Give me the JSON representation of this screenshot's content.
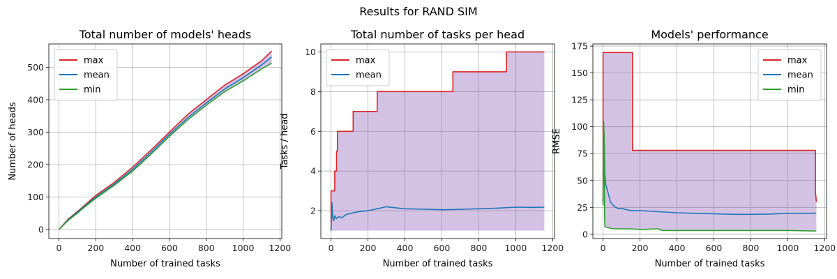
{
  "suptitle": "Results for RAND SIM",
  "colors": {
    "max": "#d62728",
    "mean": "#1f77b4",
    "min": "#2ca02c",
    "band": "#9467bd"
  },
  "chart_data": [
    {
      "type": "line",
      "title": "Total number of models' heads",
      "xlabel": "Number of trained tasks",
      "ylabel": "Number of heads",
      "xlim": [
        -55,
        1210
      ],
      "ylim": [
        -28,
        572
      ],
      "xticks": [
        0,
        200,
        400,
        600,
        800,
        1000,
        1200
      ],
      "yticks": [
        0,
        100,
        200,
        300,
        400,
        500
      ],
      "grid": true,
      "legend": "top-left",
      "band": {
        "between": [
          "min",
          "max"
        ],
        "color": "#9467bd"
      },
      "series": [
        {
          "name": "max",
          "color": "#d62728",
          "x": [
            0,
            50,
            100,
            150,
            200,
            300,
            400,
            500,
            600,
            700,
            800,
            900,
            1000,
            1100,
            1155
          ],
          "y": [
            0,
            32,
            55,
            80,
            105,
            145,
            192,
            245,
            300,
            355,
            400,
            445,
            480,
            520,
            550
          ]
        },
        {
          "name": "mean",
          "color": "#1f77b4",
          "x": [
            0,
            50,
            100,
            150,
            200,
            300,
            400,
            500,
            600,
            700,
            800,
            900,
            1000,
            1100,
            1155
          ],
          "y": [
            0,
            30,
            53,
            77,
            100,
            140,
            185,
            238,
            293,
            345,
            390,
            433,
            468,
            507,
            532
          ]
        },
        {
          "name": "min",
          "color": "#2ca02c",
          "x": [
            0,
            50,
            100,
            150,
            200,
            300,
            400,
            500,
            600,
            700,
            800,
            900,
            1000,
            1100,
            1155
          ],
          "y": [
            0,
            28,
            50,
            74,
            96,
            136,
            180,
            232,
            287,
            338,
            383,
            425,
            458,
            495,
            513
          ]
        }
      ]
    },
    {
      "type": "line",
      "title": "Total number of tasks per head",
      "xlabel": "Number of trained tasks",
      "ylabel": "Tasks / head",
      "xlim": [
        -55,
        1210
      ],
      "ylim": [
        0.6,
        10.4
      ],
      "xticks": [
        0,
        200,
        400,
        600,
        800,
        1000,
        1200
      ],
      "yticks": [
        2,
        4,
        6,
        8,
        10
      ],
      "grid": true,
      "legend": "top-left",
      "band": {
        "between": [
          "min",
          "max"
        ],
        "color": "#9467bd"
      },
      "series": [
        {
          "name": "max",
          "color": "#d62728",
          "x": [
            0,
            0,
            20,
            20,
            30,
            30,
            35,
            35,
            120,
            120,
            250,
            250,
            660,
            660,
            950,
            950,
            1155
          ],
          "y": [
            1,
            3,
            3,
            4,
            4,
            5,
            5,
            6,
            6,
            7,
            7,
            8,
            8,
            9,
            9,
            10,
            10
          ]
        },
        {
          "name": "mean",
          "color": "#1f77b4",
          "x": [
            0,
            5,
            10,
            15,
            20,
            30,
            40,
            60,
            80,
            100,
            120,
            150,
            200,
            250,
            300,
            350,
            400,
            500,
            600,
            700,
            800,
            900,
            1000,
            1100,
            1155
          ],
          "y": [
            1,
            2.4,
            1.6,
            1.5,
            1.75,
            1.6,
            1.7,
            1.65,
            1.8,
            1.85,
            1.9,
            1.95,
            2.0,
            2.1,
            2.2,
            2.15,
            2.1,
            2.08,
            2.05,
            2.07,
            2.1,
            2.13,
            2.18,
            2.17,
            2.18
          ]
        },
        {
          "name": "min",
          "color": "#9467bd",
          "hidden_in_legend": true,
          "x": [
            0,
            1155
          ],
          "y": [
            1,
            1
          ]
        }
      ]
    },
    {
      "type": "line",
      "title": "Models' performance",
      "xlabel": "Number of trained tasks",
      "ylabel": "RMSE",
      "xlim": [
        -55,
        1210
      ],
      "ylim": [
        -4,
        177
      ],
      "xticks": [
        0,
        200,
        400,
        600,
        800,
        1000,
        1200
      ],
      "yticks": [
        0,
        25,
        50,
        75,
        100,
        125,
        150,
        175
      ],
      "grid": true,
      "legend": "top-right",
      "band": {
        "between": [
          "min",
          "max"
        ],
        "color": "#9467bd"
      },
      "series": [
        {
          "name": "max",
          "color": "#d62728",
          "x": [
            0,
            0,
            160,
            160,
            1150,
            1150,
            1155
          ],
          "y": [
            30,
            169,
            169,
            78,
            78,
            40,
            30
          ]
        },
        {
          "name": "mean",
          "color": "#1f77b4",
          "x": [
            0,
            3,
            6,
            10,
            15,
            25,
            40,
            60,
            80,
            100,
            150,
            200,
            300,
            400,
            500,
            600,
            700,
            800,
            900,
            1000,
            1100,
            1155
          ],
          "y": [
            30,
            100,
            88,
            55,
            46,
            40,
            30,
            26,
            24,
            24,
            22,
            22,
            21,
            20,
            19.5,
            19,
            18.5,
            18.5,
            18.8,
            19.5,
            19.5,
            19.6
          ]
        },
        {
          "name": "min",
          "color": "#2ca02c",
          "x": [
            0,
            3,
            6,
            8,
            10,
            30,
            60,
            100,
            150,
            200,
            300,
            320,
            400,
            600,
            800,
            1000,
            1155
          ],
          "y": [
            27,
            105,
            90,
            20,
            7,
            6,
            5,
            5,
            5,
            4.5,
            5,
            3.5,
            3.5,
            3.5,
            3.5,
            3.5,
            3
          ]
        }
      ]
    }
  ]
}
